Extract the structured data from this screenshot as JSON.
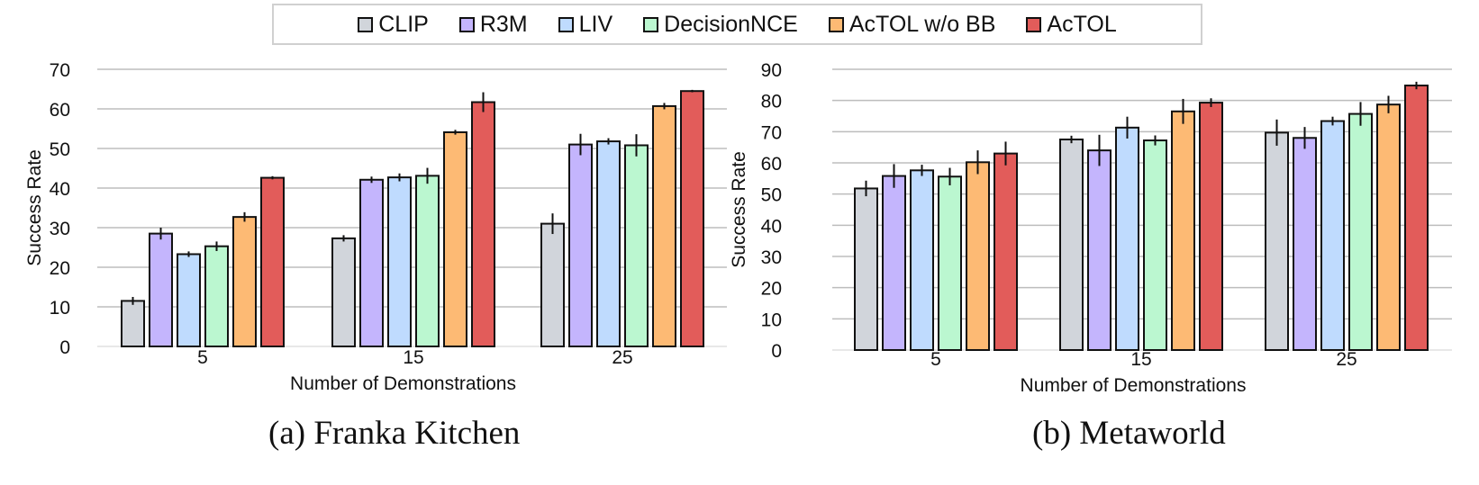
{
  "legend": [
    {
      "name": "CLIP",
      "color": "#d1d5db"
    },
    {
      "name": "R3M",
      "color": "#c4b5fd"
    },
    {
      "name": "LIV",
      "color": "#bfdbfe"
    },
    {
      "name": "DecisionNCE",
      "color": "#bbf7d0"
    },
    {
      "name": "AcTOL w/o BB",
      "color": "#fdba74"
    },
    {
      "name": "AcTOL",
      "color": "#e25c5a"
    }
  ],
  "captions": [
    "(a) Franka Kitchen",
    "(b) Metaworld"
  ],
  "chart_data": [
    {
      "type": "bar",
      "title": "(a) Franka Kitchen",
      "xlabel": "Number of Demonstrations",
      "ylabel": "Success Rate",
      "categories": [
        "5",
        "15",
        "25"
      ],
      "ylim": [
        0,
        70
      ],
      "yticks": [
        0,
        10,
        20,
        30,
        40,
        50,
        60,
        70
      ],
      "grid": true,
      "legend": "top-center",
      "series": [
        {
          "name": "CLIP",
          "values": [
            11.5,
            27.3,
            31.0
          ],
          "errors": [
            1.0,
            0.8,
            2.6
          ]
        },
        {
          "name": "R3M",
          "values": [
            28.5,
            42.1,
            51.0
          ],
          "errors": [
            1.5,
            0.8,
            2.7
          ]
        },
        {
          "name": "LIV",
          "values": [
            23.3,
            42.7,
            51.8
          ],
          "errors": [
            0.7,
            1.0,
            0.8
          ]
        },
        {
          "name": "DecisionNCE",
          "values": [
            25.3,
            43.1,
            50.8
          ],
          "errors": [
            1.2,
            2.0,
            2.8
          ]
        },
        {
          "name": "AcTOL w/o BB",
          "values": [
            32.7,
            54.1,
            60.7
          ],
          "errors": [
            1.2,
            0.6,
            0.8
          ]
        },
        {
          "name": "AcTOL",
          "values": [
            42.6,
            61.7,
            64.5
          ],
          "errors": [
            0.4,
            2.5,
            0.3
          ]
        }
      ]
    },
    {
      "type": "bar",
      "title": "(b) Metaworld",
      "xlabel": "Number of Demonstrations",
      "ylabel": "Success Rate",
      "categories": [
        "5",
        "15",
        "25"
      ],
      "ylim": [
        0,
        90
      ],
      "yticks": [
        0,
        10,
        20,
        30,
        40,
        50,
        60,
        70,
        80,
        90
      ],
      "grid": true,
      "legend": "top-center",
      "series": [
        {
          "name": "CLIP",
          "values": [
            51.8,
            67.5,
            69.7
          ],
          "errors": [
            2.5,
            1.2,
            4.2
          ]
        },
        {
          "name": "R3M",
          "values": [
            55.8,
            64.0,
            68.0
          ],
          "errors": [
            3.8,
            5.0,
            3.5
          ]
        },
        {
          "name": "LIV",
          "values": [
            57.6,
            71.3,
            73.4
          ],
          "errors": [
            1.8,
            3.5,
            1.4
          ]
        },
        {
          "name": "DecisionNCE",
          "values": [
            55.6,
            67.2,
            75.7
          ],
          "errors": [
            2.8,
            1.6,
            3.8
          ]
        },
        {
          "name": "AcTOL w/o BB",
          "values": [
            60.2,
            76.5,
            78.7
          ],
          "errors": [
            3.8,
            4.0,
            2.8
          ]
        },
        {
          "name": "AcTOL",
          "values": [
            63.0,
            79.3,
            84.8
          ],
          "errors": [
            3.8,
            1.4,
            1.2
          ]
        }
      ]
    }
  ]
}
